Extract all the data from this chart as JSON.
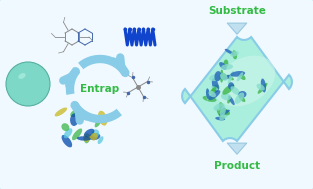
{
  "bg_color": "#f0f9ff",
  "border_color": "#80ccee",
  "left_panel": {
    "entrap_text": "Entrap",
    "entrap_color": "#33bb44",
    "arrow_color": "#88cce8",
    "drop_face": "#7dd8c8",
    "drop_edge": "#55b8a8"
  },
  "right_panel": {
    "substrate_text": "Substrate",
    "product_text": "Product",
    "label_color": "#33bb44",
    "box_face": "#aaeedd",
    "box_border": "#88cce8",
    "inner_face": "#ccf5eb",
    "arrow_face": "#c0e0f0",
    "arrow_edge": "#99c8e0"
  },
  "mol_color": "#888888",
  "mol_ring_color": "#4466aa",
  "polymer_color": "#1144cc",
  "sm_color": "#888888",
  "enzyme_colors_l": [
    "#3cb54a",
    "#0047ab",
    "#c8b820",
    "#5bc8e0"
  ],
  "enzyme_colors_r": [
    "#3cb54a",
    "#2266bb",
    "#88ddcc",
    "#44aacc",
    "#aabb44"
  ]
}
